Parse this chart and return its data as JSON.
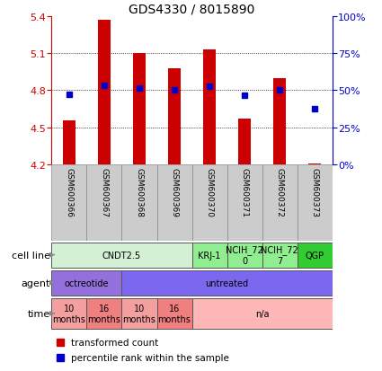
{
  "title": "GDS4330 / 8015890",
  "samples": [
    "GSM600366",
    "GSM600367",
    "GSM600368",
    "GSM600369",
    "GSM600370",
    "GSM600371",
    "GSM600372",
    "GSM600373"
  ],
  "bar_values": [
    4.56,
    5.37,
    5.1,
    4.98,
    5.13,
    4.57,
    4.9,
    4.21
  ],
  "bar_base": 4.2,
  "blue_values": [
    4.77,
    4.84,
    4.82,
    4.8,
    4.83,
    4.76,
    4.8,
    4.65
  ],
  "ylim": [
    4.2,
    5.4
  ],
  "y2lim": [
    0,
    100
  ],
  "yticks": [
    4.2,
    4.5,
    4.8,
    5.1,
    5.4
  ],
  "y2ticks": [
    0,
    25,
    50,
    75,
    100
  ],
  "y2ticklabels": [
    "0%",
    "25%",
    "50%",
    "75%",
    "100%"
  ],
  "bar_color": "#cc0000",
  "blue_color": "#0000cc",
  "cell_line_row": {
    "groups": [
      {
        "label": "CNDT2.5",
        "span": [
          0,
          4
        ],
        "color": "#d4f0d4"
      },
      {
        "label": "KRJ-1",
        "span": [
          4,
          5
        ],
        "color": "#90ee90"
      },
      {
        "label": "NCIH_72\n0",
        "span": [
          5,
          6
        ],
        "color": "#90ee90"
      },
      {
        "label": "NCIH_72\n7",
        "span": [
          6,
          7
        ],
        "color": "#90ee90"
      },
      {
        "label": "QGP",
        "span": [
          7,
          8
        ],
        "color": "#32cd32"
      }
    ]
  },
  "agent_row": {
    "groups": [
      {
        "label": "octreotide",
        "span": [
          0,
          2
        ],
        "color": "#9370db"
      },
      {
        "label": "untreated",
        "span": [
          2,
          8
        ],
        "color": "#7b68ee"
      }
    ]
  },
  "time_row": {
    "groups": [
      {
        "label": "10\nmonths",
        "span": [
          0,
          1
        ],
        "color": "#f4a0a0"
      },
      {
        "label": "16\nmonths",
        "span": [
          1,
          2
        ],
        "color": "#f08080"
      },
      {
        "label": "10\nmonths",
        "span": [
          2,
          3
        ],
        "color": "#f4a0a0"
      },
      {
        "label": "16\nmonths",
        "span": [
          3,
          4
        ],
        "color": "#f08080"
      },
      {
        "label": "n/a",
        "span": [
          4,
          8
        ],
        "color": "#ffb6b6"
      }
    ]
  },
  "legend": [
    {
      "label": "transformed count",
      "color": "#cc0000"
    },
    {
      "label": "percentile rank within the sample",
      "color": "#0000cc"
    }
  ],
  "row_labels": [
    "cell line",
    "agent",
    "time"
  ],
  "sample_box_color": "#cccccc",
  "sample_box_edge": "#888888"
}
